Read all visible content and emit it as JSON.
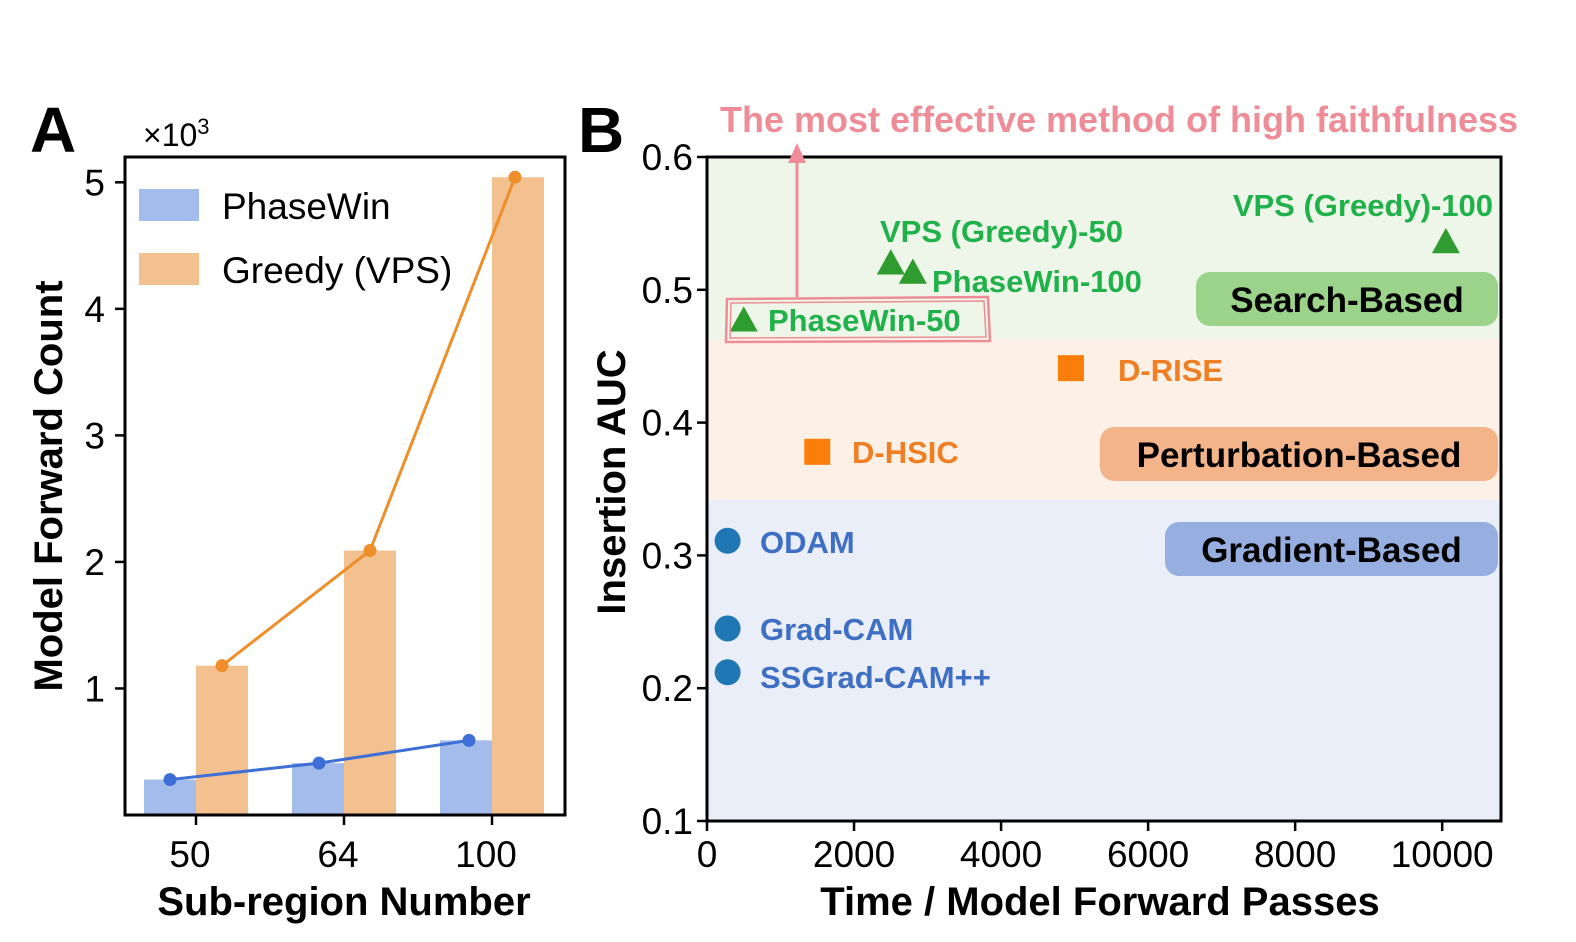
{
  "chart_data": [
    {
      "panel": "A",
      "type": "bar",
      "categories": [
        "50",
        "64",
        "100"
      ],
      "xlabel": "Sub-region Number",
      "ylabel": "Model Forward Count",
      "y_multiplier": "×10",
      "y_multiplier_exp": "3",
      "ylim": [
        0,
        5.2
      ],
      "yticks": [
        "1",
        "2",
        "3",
        "4",
        "5"
      ],
      "legend_position": "top-left",
      "series": [
        {
          "name": "PhaseWin",
          "values": [
            0.28,
            0.41,
            0.59
          ],
          "color": "#a4bcec",
          "line_color": "#3d6fd6"
        },
        {
          "name": "Greedy (VPS)",
          "values": [
            1.18,
            2.09,
            5.04
          ],
          "color": "#f3c08f",
          "line_color": "#ee8f2c"
        }
      ]
    },
    {
      "panel": "B",
      "type": "scatter",
      "xlabel": "Time / Model Forward Passes",
      "ylabel": "Insertion AUC",
      "xlim": [
        0,
        10800
      ],
      "ylim": [
        0.1,
        0.6
      ],
      "xticks": [
        "0",
        "2000",
        "4000",
        "6000",
        "8000",
        "10000"
      ],
      "yticks": [
        "0.1",
        "0.2",
        "0.3",
        "0.4",
        "0.5",
        "0.6"
      ],
      "regions": [
        {
          "name": "Search-Based",
          "y_range": [
            0.463,
            0.6
          ],
          "color": "#eef6e9",
          "label_color": "#9cd38b"
        },
        {
          "name": "Perturbation-Based",
          "y_range": [
            0.342,
            0.463
          ],
          "color": "#fdf0e6",
          "label_color": "#f4b48a"
        },
        {
          "name": "Gradient-Based",
          "y_range": [
            0.1,
            0.342
          ],
          "color": "#eaeef8",
          "label_color": "#96aee0"
        }
      ],
      "points": [
        {
          "label": "PhaseWin-50",
          "x": 500,
          "y": 0.477,
          "marker": "triangle",
          "color": "#2e9c2e",
          "label_color": "#21b14a"
        },
        {
          "label": "VPS (Greedy)-50",
          "x": 2500,
          "y": 0.52,
          "marker": "triangle",
          "color": "#2e9c2e",
          "label_color": "#21b14a"
        },
        {
          "label": "PhaseWin-100",
          "x": 2800,
          "y": 0.513,
          "marker": "triangle",
          "color": "#2e9c2e",
          "label_color": "#21b14a"
        },
        {
          "label": "VPS (Greedy)-100",
          "x": 10050,
          "y": 0.536,
          "marker": "triangle",
          "color": "#2e9c2e",
          "label_color": "#21b14a"
        },
        {
          "label": "D-RISE",
          "x": 4950,
          "y": 0.441,
          "marker": "square",
          "color": "#fb7d0a",
          "label_color": "#f07f24"
        },
        {
          "label": "D-HSIC",
          "x": 1500,
          "y": 0.378,
          "marker": "square",
          "color": "#fb7d0a",
          "label_color": "#f07f24"
        },
        {
          "label": "ODAM",
          "x": 280,
          "y": 0.311,
          "marker": "circle",
          "color": "#1f77b4",
          "label_color": "#3f6fc4"
        },
        {
          "label": "Grad-CAM",
          "x": 280,
          "y": 0.245,
          "marker": "circle",
          "color": "#1f77b4",
          "label_color": "#3f6fc4"
        },
        {
          "label": "SSGrad-CAM++",
          "x": 280,
          "y": 0.212,
          "marker": "circle",
          "color": "#1f77b4",
          "label_color": "#3f6fc4"
        }
      ],
      "annotation": "The most effective method of high faithfulness",
      "highlight_point": "PhaseWin-50"
    }
  ]
}
